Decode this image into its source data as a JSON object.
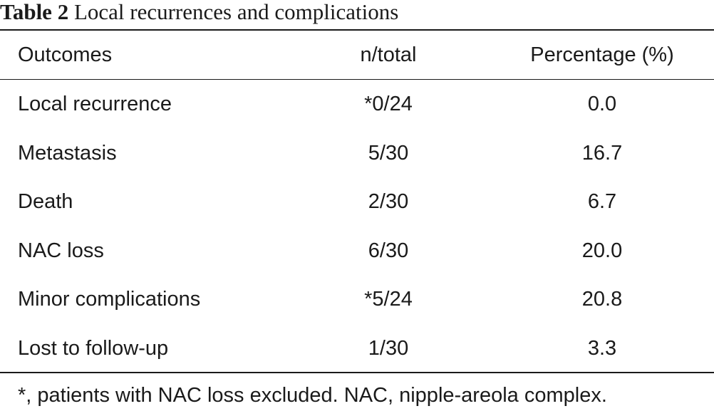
{
  "caption": {
    "label": "Table 2",
    "title": "Local recurrences and complications"
  },
  "table": {
    "columns": [
      "Outcomes",
      "n/total",
      "Percentage (%)"
    ],
    "rows": [
      [
        "Local recurrence",
        "*0/24",
        "0.0"
      ],
      [
        "Metastasis",
        "5/30",
        "16.7"
      ],
      [
        "Death",
        "2/30",
        "6.7"
      ],
      [
        "NAC loss",
        "6/30",
        "20.0"
      ],
      [
        "Minor complications",
        "*5/24",
        "20.8"
      ],
      [
        "Lost to follow-up",
        "1/30",
        "3.3"
      ]
    ]
  },
  "footnote": "*, patients with NAC loss excluded. NAC, nipple-areola complex."
}
